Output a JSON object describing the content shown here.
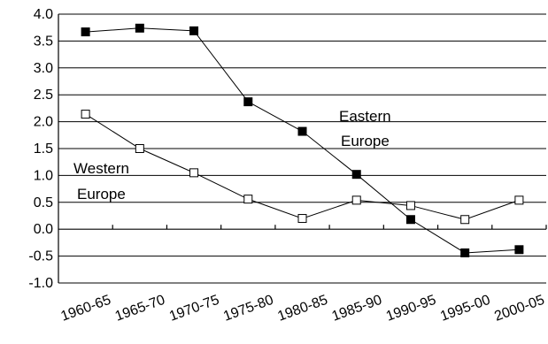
{
  "chart_data": {
    "type": "line",
    "title": "",
    "xlabel": "",
    "ylabel": "",
    "categories": [
      "1960-65",
      "1965-70",
      "1970-75",
      "1975-80",
      "1980-85",
      "1985-90",
      "1990-95",
      "1995-00",
      "2000-05"
    ],
    "ylim": [
      -1.0,
      4.0
    ],
    "yticks": [
      "4.0",
      "3.5",
      "3.0",
      "2.5",
      "2.0",
      "1.5",
      "1.0",
      "0.5",
      "0.0",
      "-0.5",
      "-1.0"
    ],
    "grid": true,
    "legend": "none",
    "series": [
      {
        "name": "Eastern Europe",
        "label_lines": [
          "Eastern",
          "Europe"
        ],
        "marker": "filled-square",
        "values": [
          3.67,
          3.74,
          3.69,
          2.37,
          1.82,
          1.02,
          0.18,
          -0.44,
          -0.38
        ]
      },
      {
        "name": "Western Europe",
        "label_lines": [
          "Western",
          "Europe"
        ],
        "marker": "open-square",
        "values": [
          2.14,
          1.5,
          1.05,
          0.56,
          0.2,
          0.54,
          0.44,
          0.18,
          0.54
        ]
      }
    ]
  }
}
